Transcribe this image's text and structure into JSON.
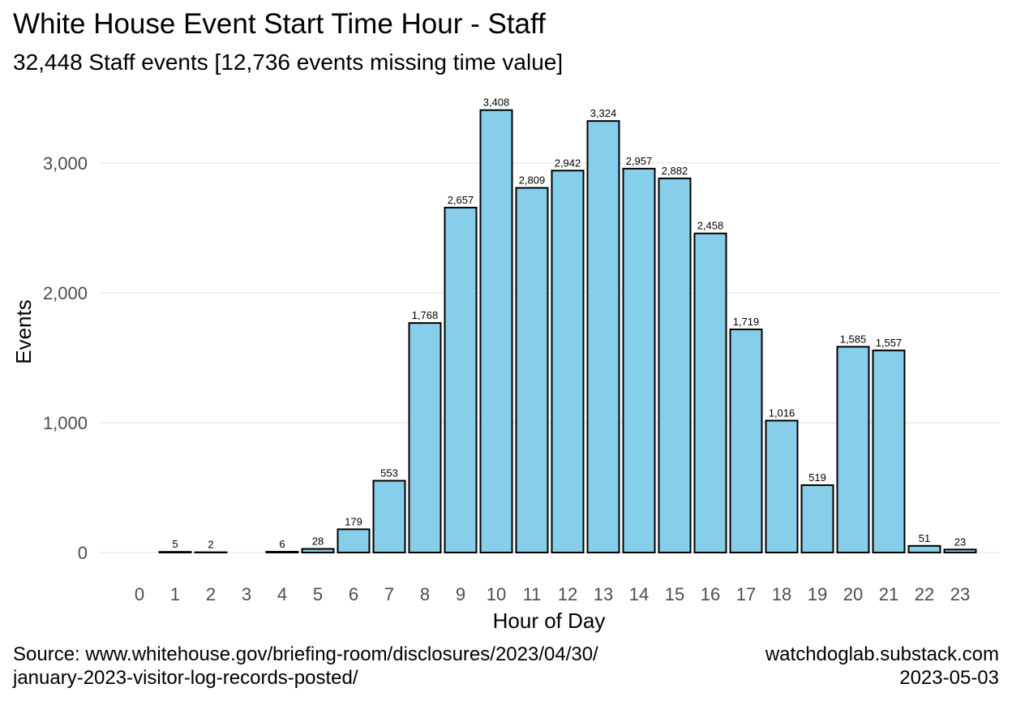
{
  "chart_data": {
    "type": "bar",
    "title": "White House Event Start Time Hour - Staff",
    "subtitle": "32,448 Staff events [12,736 events missing time value]",
    "xlabel": "Hour of Day",
    "ylabel": "Events",
    "categories": [
      "0",
      "1",
      "2",
      "3",
      "4",
      "5",
      "6",
      "7",
      "8",
      "9",
      "10",
      "11",
      "12",
      "13",
      "14",
      "15",
      "16",
      "17",
      "18",
      "19",
      "20",
      "21",
      "22",
      "23"
    ],
    "values": [
      0,
      5,
      2,
      0,
      6,
      28,
      179,
      553,
      1768,
      2657,
      3408,
      2809,
      2942,
      3324,
      2957,
      2882,
      2458,
      1719,
      1016,
      519,
      1585,
      1557,
      51,
      23
    ],
    "data_labels": [
      "",
      "5",
      "2",
      "",
      "6",
      "28",
      "179",
      "553",
      "1,768",
      "2,657",
      "3,408",
      "2,809",
      "2,942",
      "3,324",
      "2,957",
      "2,882",
      "2,458",
      "1,719",
      "1,016",
      "519",
      "1,585",
      "1,557",
      "51",
      "23"
    ],
    "yticks": [
      0,
      1000,
      2000,
      3000
    ],
    "ytick_labels": [
      "0",
      "1,000",
      "2,000",
      "3,000"
    ],
    "ylim": [
      0,
      3408
    ],
    "grid": true,
    "bar_color": "#87CEEB",
    "bar_edge_color": "#000000"
  },
  "caption": {
    "source_line1": "Source: www.whitehouse.gov/briefing-room/disclosures/2023/04/30/",
    "source_line2": "january-2023-visitor-log-records-posted/",
    "site": "watchdoglab.substack.com",
    "date": "2023-05-03"
  }
}
